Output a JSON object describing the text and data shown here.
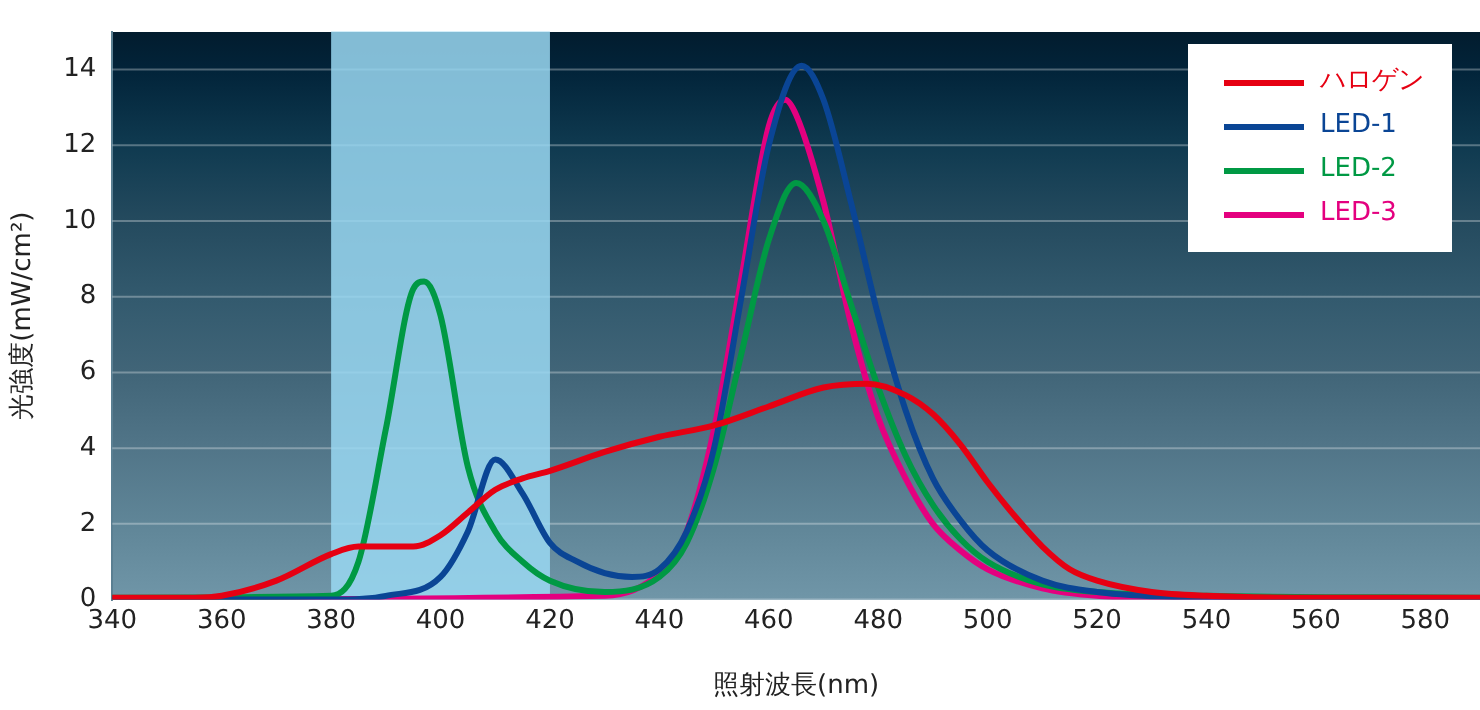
{
  "chart_data": {
    "type": "line",
    "xlabel": "照射波長(nm)",
    "ylabel": "光強度(mW/cm²)",
    "xlim": [
      340,
      590
    ],
    "xticks": [
      340,
      360,
      380,
      400,
      420,
      440,
      460,
      480,
      500,
      520,
      540,
      560,
      580
    ],
    "ylim": [
      0,
      15
    ],
    "yticks": [
      0,
      2,
      4,
      6,
      8,
      10,
      12,
      14
    ],
    "grid": "y",
    "legend": "top right",
    "marker": "none",
    "line_style": "solid",
    "bands": [
      {
        "axis": "x",
        "from": 380,
        "to": 420,
        "color": "#9ad8f2"
      }
    ],
    "series": [
      {
        "name": "ハロゲン",
        "color": "#e60012",
        "x": [
          340,
          355,
          360,
          370,
          380,
          385,
          395,
          400,
          405,
          410,
          415,
          420,
          430,
          440,
          450,
          460,
          470,
          478,
          485,
          490,
          495,
          500,
          505,
          510,
          515,
          520,
          530,
          540,
          560,
          590
        ],
        "values": [
          0.05,
          0.05,
          0.1,
          0.5,
          1.2,
          1.4,
          1.4,
          1.7,
          2.3,
          2.9,
          3.2,
          3.4,
          3.9,
          4.3,
          4.6,
          5.1,
          5.6,
          5.7,
          5.4,
          4.9,
          4.1,
          3.1,
          2.2,
          1.4,
          0.8,
          0.5,
          0.2,
          0.1,
          0.05,
          0.05
        ]
      },
      {
        "name": "LED-1",
        "color": "#0a4595",
        "x": [
          340,
          380,
          390,
          400,
          405,
          410,
          415,
          420,
          425,
          430,
          435,
          440,
          445,
          450,
          455,
          460,
          466,
          470,
          475,
          480,
          485,
          490,
          495,
          500,
          510,
          520,
          540,
          590
        ],
        "values": [
          0,
          0,
          0.1,
          0.6,
          1.8,
          3.7,
          2.8,
          1.5,
          1.0,
          0.7,
          0.6,
          0.8,
          1.8,
          4,
          8,
          12,
          14.1,
          13.2,
          10.5,
          7.5,
          5,
          3.2,
          2.1,
          1.3,
          0.5,
          0.2,
          0.05,
          0
        ]
      },
      {
        "name": "LED-2",
        "color": "#009944",
        "x": [
          340,
          380,
          385,
          390,
          395,
          397,
          400,
          405,
          410,
          415,
          420,
          430,
          440,
          445,
          450,
          455,
          460,
          465,
          470,
          475,
          480,
          485,
          490,
          495,
          500,
          510,
          520,
          540,
          590
        ],
        "values": [
          0.05,
          0.1,
          1.0,
          4.5,
          8.2,
          8.4,
          7.5,
          3.5,
          1.8,
          1.0,
          0.5,
          0.2,
          0.6,
          1.5,
          3.5,
          6.5,
          9.5,
          11.0,
          10.0,
          7.8,
          5.6,
          3.8,
          2.5,
          1.6,
          1.0,
          0.4,
          0.2,
          0.1,
          0.05
        ]
      },
      {
        "name": "LED-3",
        "color": "#e4007f",
        "x": [
          340,
          430,
          440,
          445,
          450,
          455,
          460,
          463,
          465,
          470,
          475,
          480,
          485,
          490,
          495,
          500,
          510,
          520,
          540,
          590
        ],
        "values": [
          0,
          0.1,
          0.7,
          1.8,
          4.5,
          8.5,
          12.5,
          13.2,
          12.8,
          10.5,
          7.3,
          4.8,
          3.2,
          2.0,
          1.3,
          0.8,
          0.3,
          0.1,
          0,
          0
        ]
      }
    ]
  }
}
